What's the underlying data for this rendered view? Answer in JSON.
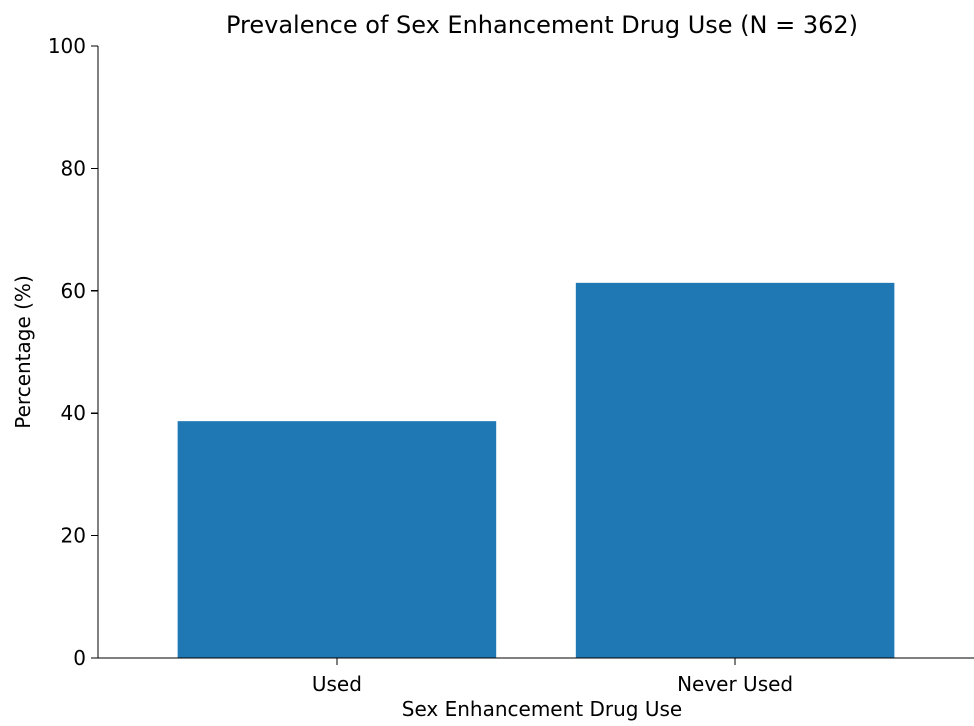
{
  "chart_data": {
    "type": "bar",
    "title": "Prevalence of Sex Enhancement Drug Use (N = 362)",
    "xlabel": "Sex Enhancement Drug Use",
    "ylabel": "Percentage (%)",
    "categories": [
      "Used",
      "Never Used"
    ],
    "values": [
      38.7,
      61.3
    ],
    "ylim": [
      0,
      100
    ],
    "yticks": [
      0,
      20,
      40,
      60,
      80,
      100
    ],
    "grid": false,
    "legend": "none",
    "bar_color": "#1f77b4"
  }
}
